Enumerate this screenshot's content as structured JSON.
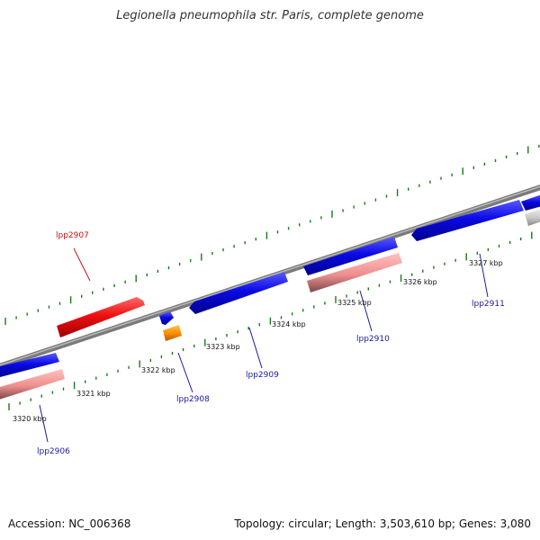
{
  "title": "Legionella pneumophila str. Paris, complete genome",
  "footer": {
    "accession": "Accession: NC_006368",
    "summary": "Topology: circular; Length: 3,503,610 bp; Genes: 3,080"
  },
  "colors": {
    "forward_cds": "#0a0ae6",
    "reverse_cds": "#e61414",
    "pink_feature": "#ef8f8f",
    "orange_feature": "#ff9000",
    "gray_feature": "#c8c8c8",
    "backbone": "#8a8a8a",
    "ticks": "#1a7a1a",
    "forward_label": "#1a1aa0",
    "reverse_label": "#cc1111"
  },
  "ticks": [
    {
      "label": "3320 kbp"
    },
    {
      "label": "3321 kbp"
    },
    {
      "label": "3322 kbp"
    },
    {
      "label": "3323 kbp"
    },
    {
      "label": "3324 kbp"
    },
    {
      "label": "3325 kbp"
    },
    {
      "label": "3326 kbp"
    },
    {
      "label": "3327 kbp"
    }
  ],
  "genes": [
    {
      "label": "lpp2906",
      "strand": "forward"
    },
    {
      "label": "lpp2907",
      "strand": "reverse"
    },
    {
      "label": "lpp2908",
      "strand": "forward"
    },
    {
      "label": "lpp2909",
      "strand": "forward"
    },
    {
      "label": "lpp2910",
      "strand": "forward"
    },
    {
      "label": "lpp2911",
      "strand": "forward"
    }
  ]
}
